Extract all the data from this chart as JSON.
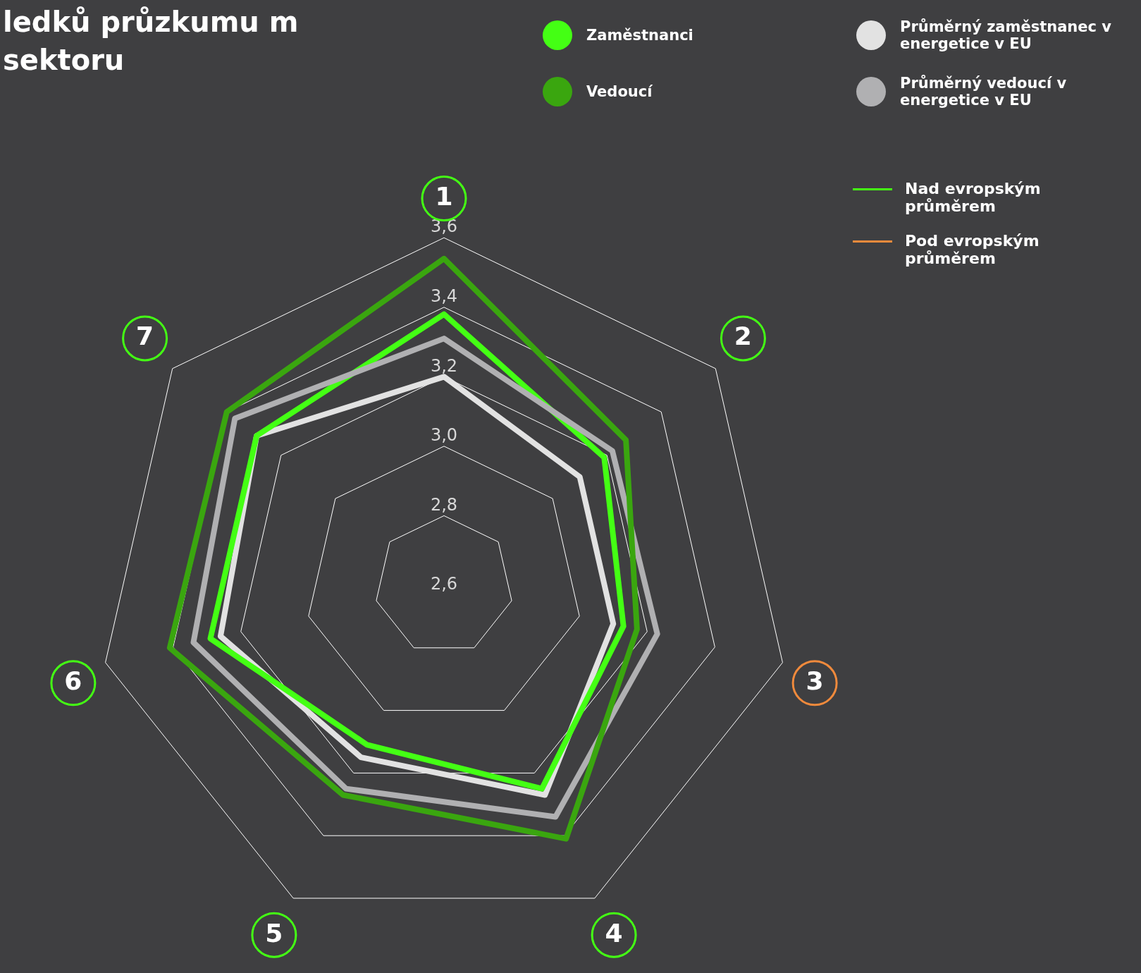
{
  "chart_data": {
    "type": "radar",
    "title": "ledků průzkumu m sektoru",
    "categories": [
      "1",
      "2",
      "3",
      "4",
      "5",
      "6",
      "7"
    ],
    "colors": [
      "#44ff14",
      "#44ff14",
      "#f08a3c",
      "#44ff14",
      "#44ff14",
      "#44ff14",
      "#44ff14"
    ],
    "ylim": [
      2.6,
      3.6
    ],
    "yticks": [
      {
        "value": 2.6,
        "label": "2,6"
      },
      {
        "value": 2.8,
        "label": "2,8"
      },
      {
        "value": 3.0,
        "label": "3,0"
      },
      {
        "value": 3.2,
        "label": "3,2"
      },
      {
        "value": 3.4,
        "label": "3,4"
      },
      {
        "value": 3.6,
        "label": "3,6"
      }
    ],
    "grid": true,
    "legend": "top right",
    "marker": "none",
    "line_style": "solid",
    "annotations": [
      "Nad evropským průměrem",
      "Pod evropským průměrem"
    ],
    "series": [
      {
        "name": "Zaměstnanci",
        "color": "#44ff14",
        "values": [
          3.38,
          3.19,
          3.13,
          3.25,
          3.11,
          3.29,
          3.29
        ]
      },
      {
        "name": "Vedoucí",
        "color": "#3aa60f",
        "values": [
          3.54,
          3.27,
          3.17,
          3.41,
          3.27,
          3.41,
          3.4
        ]
      },
      {
        "name": "Průměrný zaměstnanec v energetice v EU",
        "color": "#e2e2e2",
        "values": [
          3.2,
          3.1,
          3.1,
          3.27,
          3.15,
          3.26,
          3.29
        ]
      },
      {
        "name": "Průměrný vedoucí v energetice v EU",
        "color": "#b0b0b2",
        "values": [
          3.31,
          3.22,
          3.23,
          3.34,
          3.25,
          3.34,
          3.37
        ]
      }
    ]
  }
}
